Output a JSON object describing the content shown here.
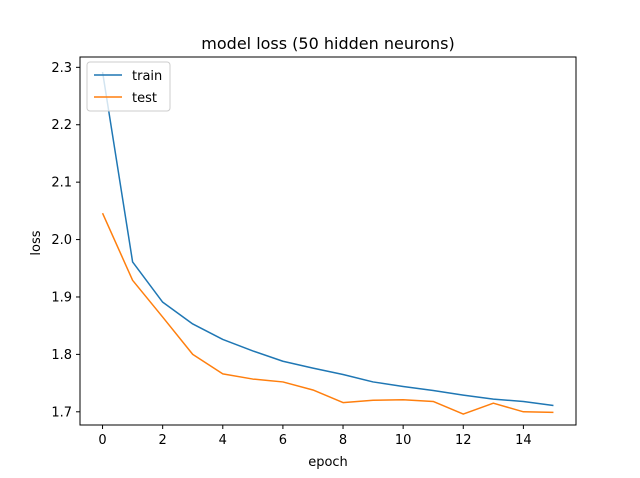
{
  "chart_data": {
    "type": "line",
    "title": "model loss (50 hidden neurons)",
    "xlabel": "epoch",
    "ylabel": "loss",
    "xlim": [
      -0.75,
      15.75
    ],
    "ylim": [
      1.677,
      2.318
    ],
    "xticks": [
      0,
      2,
      4,
      6,
      8,
      10,
      12,
      14
    ],
    "yticks": [
      1.7,
      1.8,
      1.9,
      2.0,
      2.1,
      2.2,
      2.3
    ],
    "xtick_labels": [
      "0",
      "2",
      "4",
      "6",
      "8",
      "10",
      "12",
      "14"
    ],
    "ytick_labels": [
      "1.7",
      "1.8",
      "1.9",
      "2.0",
      "2.1",
      "2.2",
      "2.3"
    ],
    "x": [
      0,
      1,
      2,
      3,
      4,
      5,
      6,
      7,
      8,
      9,
      10,
      11,
      12,
      13,
      14,
      15
    ],
    "series": [
      {
        "name": "train",
        "color": "#1f77b4",
        "values": [
          2.292,
          1.961,
          1.891,
          1.853,
          1.826,
          1.806,
          1.788,
          1.776,
          1.765,
          1.752,
          1.744,
          1.737,
          1.729,
          1.722,
          1.718,
          1.711
        ]
      },
      {
        "name": "test",
        "color": "#ff7f0e",
        "values": [
          2.046,
          1.929,
          1.865,
          1.8,
          1.766,
          1.757,
          1.752,
          1.738,
          1.716,
          1.72,
          1.721,
          1.718,
          1.696,
          1.715,
          1.7,
          1.699
        ]
      }
    ],
    "legend": {
      "position": "top-left"
    },
    "grid": false
  }
}
